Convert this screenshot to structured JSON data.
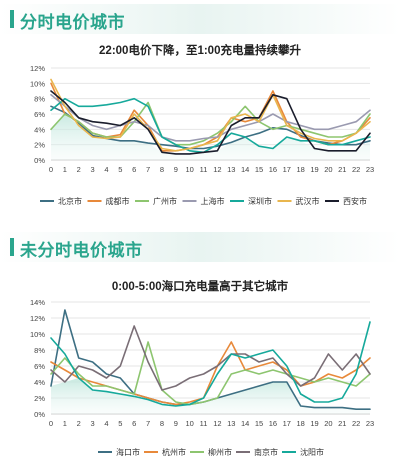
{
  "sections": [
    {
      "title": "分时电价城市"
    },
    {
      "title": "未分时电价城市"
    }
  ],
  "chart_data": [
    {
      "type": "line",
      "title": "22:00电价下降，至1:00充电量持续攀升",
      "categories": [
        "0",
        "1",
        "2",
        "3",
        "4",
        "5",
        "6",
        "7",
        "8",
        "9",
        "10",
        "11",
        "12",
        "13",
        "14",
        "15",
        "16",
        "17",
        "18",
        "19",
        "20",
        "21",
        "22",
        "23"
      ],
      "ylim": [
        0,
        12
      ],
      "yticks": [
        0,
        2,
        4,
        6,
        8,
        10,
        12
      ],
      "ytick_suffix": "%",
      "grid": true,
      "legend_position": "bottom",
      "series": [
        {
          "name": "北京市",
          "color": "#3d6f83",
          "values": [
            7.0,
            6.2,
            4.8,
            3.2,
            2.8,
            2.5,
            2.5,
            2.2,
            2.0,
            1.8,
            1.5,
            1.5,
            1.8,
            2.3,
            3.0,
            3.5,
            4.2,
            4.0,
            3.2,
            2.5,
            2.2,
            2.0,
            2.0,
            2.5
          ]
        },
        {
          "name": "成都市",
          "color": "#e8893a",
          "values": [
            10.0,
            6.0,
            5.0,
            3.5,
            3.0,
            3.3,
            6.5,
            4.5,
            1.2,
            1.2,
            1.5,
            2.0,
            3.0,
            5.5,
            5.0,
            5.5,
            9.0,
            5.0,
            3.0,
            2.5,
            2.0,
            2.5,
            3.5,
            5.5
          ]
        },
        {
          "name": "广州市",
          "color": "#8dc56f",
          "values": [
            4.0,
            6.0,
            5.0,
            3.5,
            3.0,
            3.0,
            5.0,
            7.5,
            3.0,
            2.0,
            2.0,
            2.5,
            3.5,
            5.0,
            7.0,
            5.0,
            4.0,
            4.5,
            4.0,
            3.5,
            3.0,
            3.0,
            3.5,
            6.0
          ]
        },
        {
          "name": "上海市",
          "color": "#9a9ab0",
          "values": [
            8.5,
            7.0,
            5.5,
            4.5,
            4.0,
            4.5,
            5.0,
            4.5,
            3.0,
            2.5,
            2.5,
            2.8,
            3.0,
            4.0,
            4.5,
            5.0,
            6.0,
            5.0,
            4.5,
            4.0,
            4.0,
            4.5,
            5.0,
            6.5
          ]
        },
        {
          "name": "深圳市",
          "color": "#16a99b",
          "values": [
            6.5,
            8.0,
            7.0,
            7.0,
            7.2,
            7.5,
            8.0,
            7.0,
            3.0,
            2.0,
            1.2,
            1.0,
            2.0,
            3.5,
            3.0,
            1.8,
            1.5,
            3.0,
            2.5,
            2.5,
            2.0,
            2.0,
            2.5,
            3.0
          ]
        },
        {
          "name": "武汉市",
          "color": "#e9b64e",
          "values": [
            10.5,
            7.0,
            4.5,
            3.0,
            2.8,
            3.0,
            6.0,
            4.0,
            1.5,
            1.2,
            1.5,
            2.0,
            2.5,
            5.5,
            6.0,
            5.0,
            8.5,
            4.5,
            3.5,
            2.8,
            2.5,
            2.5,
            3.5,
            5.0
          ]
        },
        {
          "name": "西安市",
          "color": "#1a1d2c",
          "values": [
            9.0,
            7.5,
            5.5,
            5.0,
            4.8,
            4.5,
            5.5,
            4.0,
            1.0,
            0.8,
            0.8,
            1.0,
            1.2,
            4.5,
            5.5,
            5.5,
            8.5,
            8.0,
            4.0,
            1.5,
            1.2,
            1.2,
            1.2,
            3.5
          ]
        }
      ]
    },
    {
      "type": "line",
      "title": "0:00-5:00海口充电量高于其它城市",
      "categories": [
        "0",
        "1",
        "2",
        "3",
        "4",
        "5",
        "6",
        "7",
        "8",
        "9",
        "10",
        "11",
        "12",
        "13",
        "14",
        "15",
        "16",
        "17",
        "18",
        "19",
        "20",
        "21",
        "22",
        "23"
      ],
      "ylim": [
        0,
        14
      ],
      "yticks": [
        0,
        2,
        4,
        6,
        8,
        10,
        12,
        14
      ],
      "ytick_suffix": "%",
      "grid": true,
      "legend_position": "bottom",
      "series": [
        {
          "name": "海口市",
          "color": "#3d6f83",
          "values": [
            3.5,
            13.0,
            7.0,
            6.5,
            5.0,
            4.5,
            2.5,
            2.0,
            1.5,
            1.2,
            1.2,
            1.5,
            2.0,
            2.5,
            3.0,
            3.5,
            4.0,
            4.0,
            1.0,
            0.8,
            0.8,
            0.8,
            0.6,
            0.6
          ]
        },
        {
          "name": "杭州市",
          "color": "#e8893a",
          "values": [
            6.5,
            5.5,
            4.5,
            4.0,
            3.5,
            3.0,
            2.5,
            2.0,
            1.5,
            1.2,
            1.5,
            2.0,
            6.0,
            9.0,
            5.5,
            6.0,
            6.5,
            5.5,
            3.5,
            4.0,
            5.0,
            4.5,
            5.5,
            7.0
          ]
        },
        {
          "name": "柳州市",
          "color": "#8dc56f",
          "values": [
            5.0,
            7.0,
            5.0,
            3.5,
            3.5,
            3.0,
            2.5,
            9.0,
            3.0,
            1.5,
            1.2,
            1.5,
            2.0,
            5.0,
            5.5,
            5.0,
            5.5,
            5.0,
            4.5,
            4.0,
            4.5,
            4.0,
            3.5,
            5.0
          ]
        },
        {
          "name": "南京市",
          "color": "#7a6e76",
          "values": [
            5.5,
            4.0,
            6.0,
            5.5,
            4.5,
            6.0,
            11.0,
            6.5,
            3.0,
            3.5,
            4.5,
            5.0,
            6.0,
            7.5,
            7.5,
            6.5,
            7.0,
            5.0,
            3.5,
            4.5,
            7.5,
            5.5,
            7.5,
            5.0
          ]
        },
        {
          "name": "沈阳市",
          "color": "#16a99b",
          "values": [
            9.5,
            7.5,
            4.5,
            3.0,
            2.8,
            2.5,
            2.2,
            1.8,
            1.2,
            1.0,
            1.2,
            2.0,
            5.0,
            7.5,
            7.0,
            7.5,
            8.0,
            6.0,
            2.5,
            1.5,
            1.5,
            2.0,
            5.0,
            11.5
          ]
        }
      ]
    }
  ]
}
